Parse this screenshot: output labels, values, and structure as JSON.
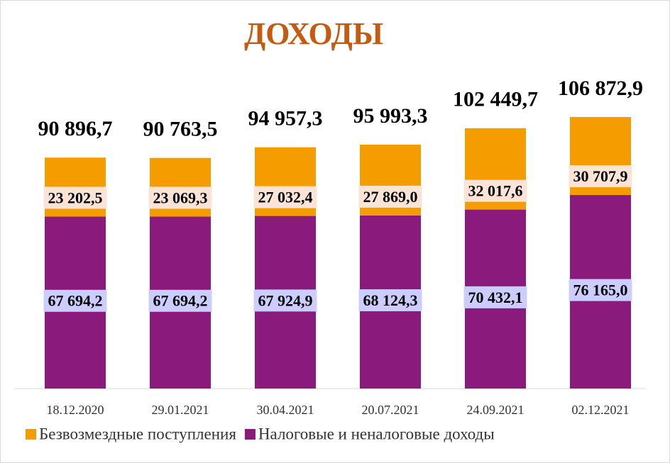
{
  "chart_data": {
    "type": "stacked_bar",
    "title": "ДОХОДЫ",
    "categories": [
      "18.12.2020",
      "29.01.2021",
      "30.04.2021",
      "20.07.2021",
      "24.09.2021",
      "02.12.2021"
    ],
    "series": [
      {
        "name": "Безвозмездные поступления",
        "color": "#f59c00",
        "values": [
          23202.5,
          23069.3,
          27032.4,
          27869.0,
          32017.6,
          30707.9
        ],
        "value_labels": [
          "23 202,5",
          "23 069,3",
          "27 032,4",
          "27 869,0",
          "32 017,6",
          "30 707,9"
        ]
      },
      {
        "name": "Налоговые и неналоговые доходы",
        "color": "#8b1a7d",
        "values": [
          67694.2,
          67694.2,
          67924.9,
          68124.3,
          70432.1,
          76165.0
        ],
        "value_labels": [
          "67 694,2",
          "67 694,2",
          "67 924,9",
          "68 124,3",
          "70 432,1",
          "76 165,0"
        ]
      }
    ],
    "totals": [
      90896.7,
      90763.5,
      94957.3,
      95993.3,
      102449.7,
      106872.9
    ],
    "total_labels": [
      "90 896,7",
      "90 763,5",
      "94 957,3",
      "95 993,3",
      "102 449,7",
      "106 872,9"
    ],
    "legend": "bottom"
  }
}
